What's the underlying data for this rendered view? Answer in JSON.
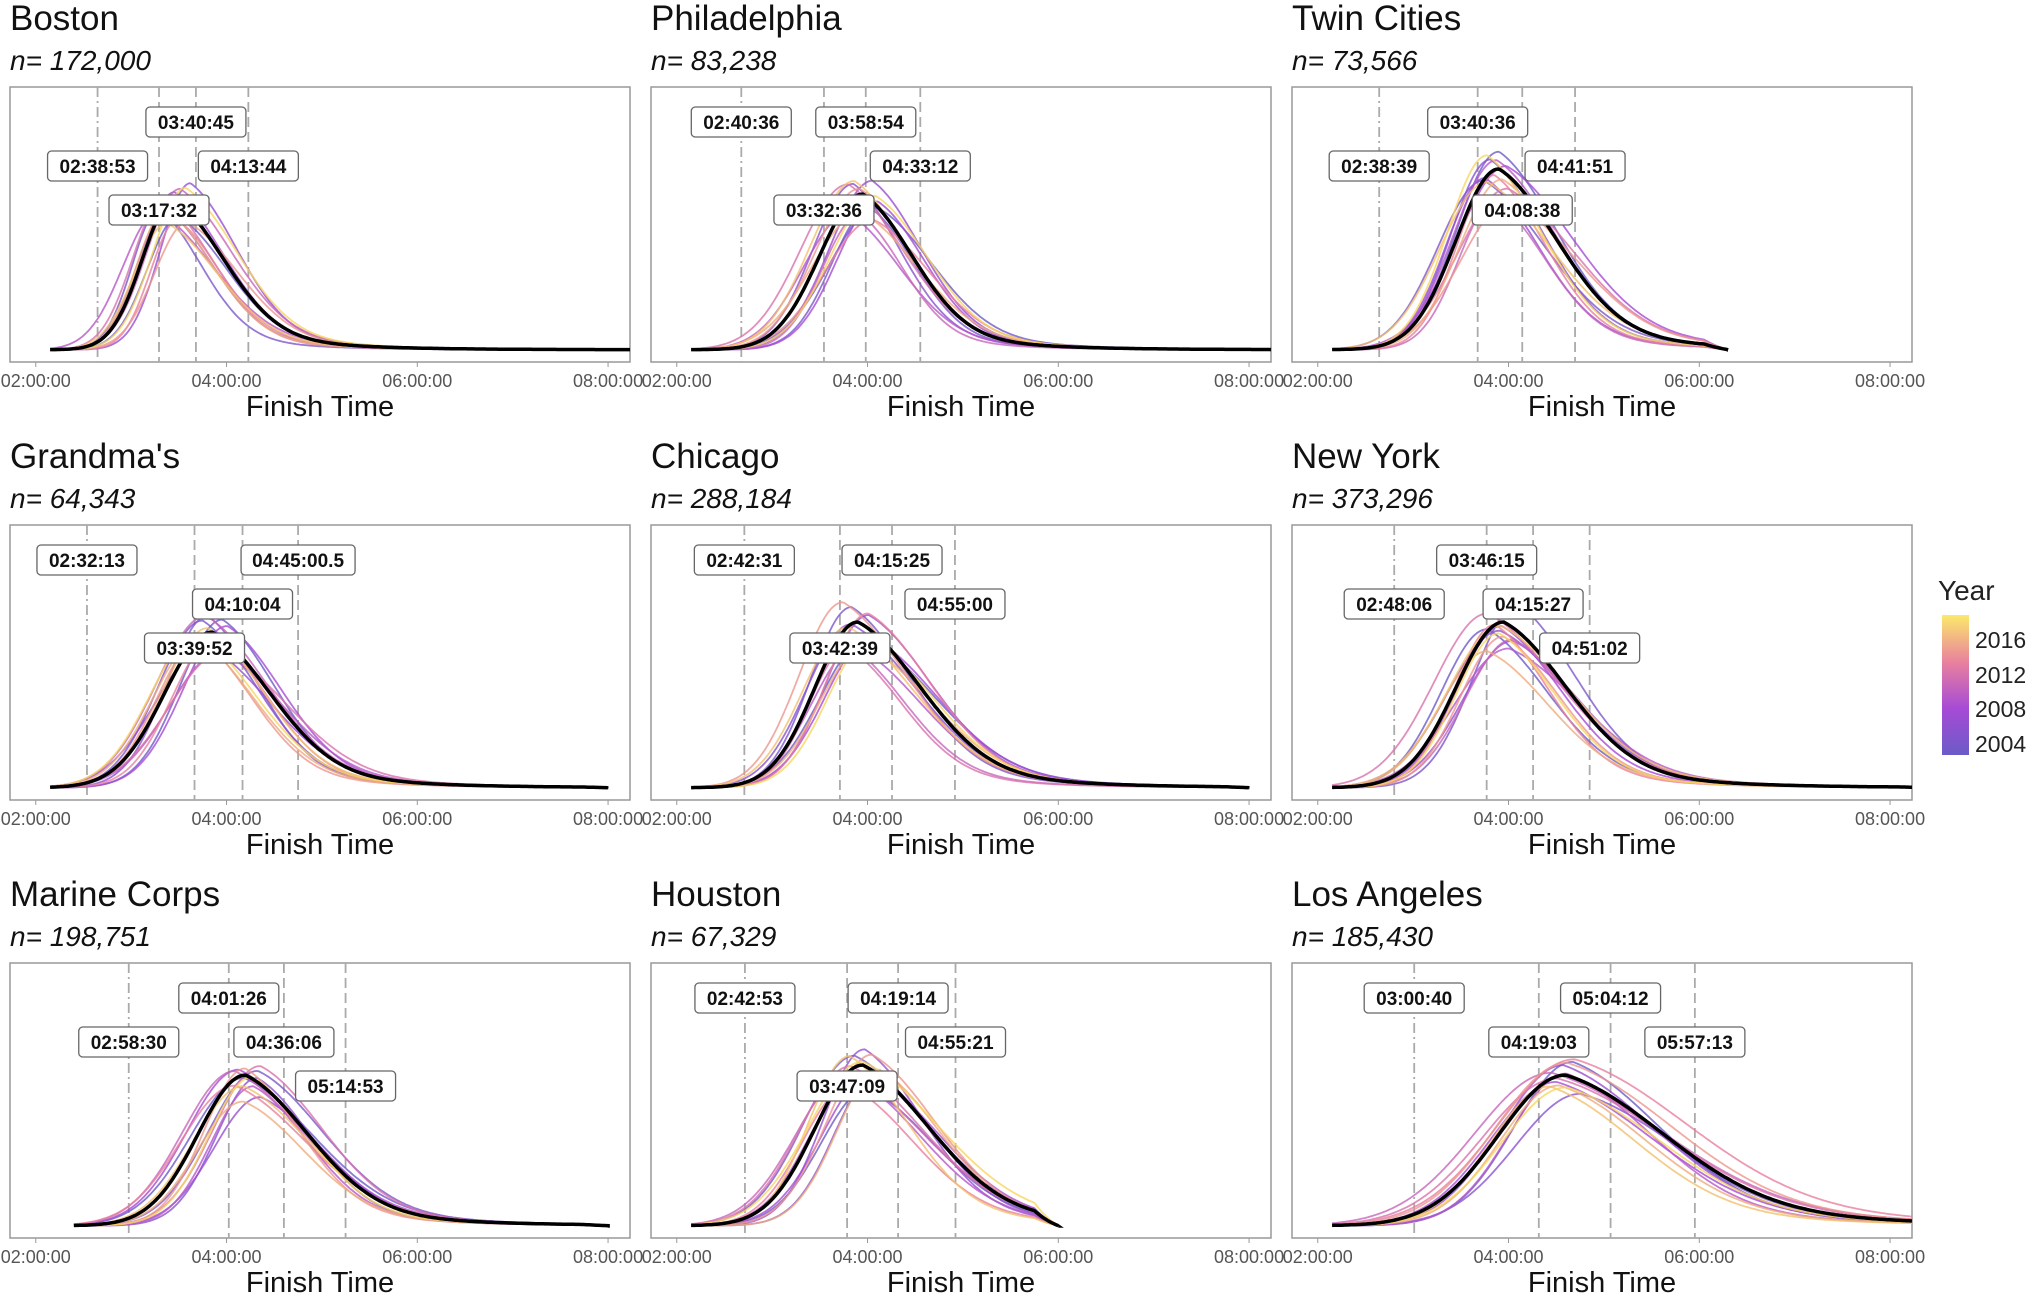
{
  "chart_data": {
    "type": "line",
    "description_units": "x in hours of finish time; curves are density of finishers per year",
    "xlabel": "Finish Time",
    "x_ticks": [
      "02:00:00",
      "04:00:00",
      "06:00:00",
      "08:00:00"
    ],
    "xlim_hours": [
      1.73,
      8.23
    ],
    "legend": {
      "title": "Year",
      "labels": [
        "2016",
        "2012",
        "2008",
        "2004"
      ],
      "range": [
        2004,
        2016
      ],
      "placement": "right"
    },
    "colors": {
      "2004": "#6b5bc7",
      "2008": "#a64bd6",
      "2012": "#e8809e",
      "2016": "#f6d65e",
      "mean": "#000000"
    },
    "panels": [
      {
        "title": "Boston",
        "n": "n= 172,000",
        "marks": [
          {
            "label": "02:38:53",
            "level": 1
          },
          {
            "label": "03:17:32",
            "level": 2
          },
          {
            "label": "03:40:45",
            "level": 0
          },
          {
            "label": "04:13:44",
            "level": 1
          }
        ],
        "curve": {
          "mode": 3.45,
          "sl": 0.33,
          "sr": 0.55,
          "start": 2.15,
          "end": 8.4,
          "peak": 0.6
        }
      },
      {
        "title": "Philadelphia",
        "n": "n= 83,238",
        "marks": [
          {
            "label": "02:40:36",
            "level": 0
          },
          {
            "label": "03:32:36",
            "level": 2
          },
          {
            "label": "03:58:54",
            "level": 0
          },
          {
            "label": "04:33:12",
            "level": 1
          }
        ],
        "curve": {
          "mode": 3.95,
          "sl": 0.45,
          "sr": 0.55,
          "start": 2.15,
          "end": 8.4,
          "peak": 0.62
        }
      },
      {
        "title": "Twin Cities",
        "n": "n= 73,566",
        "marks": [
          {
            "label": "02:38:39",
            "level": 1
          },
          {
            "label": "03:40:36",
            "level": 0
          },
          {
            "label": "04:08:38",
            "level": 2
          },
          {
            "label": "04:41:51",
            "level": 1
          }
        ],
        "curve": {
          "mode": 3.9,
          "sl": 0.45,
          "sr": 0.65,
          "start": 2.15,
          "end": 6.3,
          "peak": 0.72
        }
      },
      {
        "title": "Grandma's",
        "n": "n= 64,343",
        "marks": [
          {
            "label": "02:32:13",
            "level": 0
          },
          {
            "label": "03:39:52",
            "level": 2
          },
          {
            "label": "04:10:04",
            "level": 1
          },
          {
            "label": "04:45:00.5",
            "level": 0
          }
        ],
        "curve": {
          "mode": 3.85,
          "sl": 0.5,
          "sr": 0.65,
          "start": 2.15,
          "end": 8.0,
          "peak": 0.62
        }
      },
      {
        "title": "Chicago",
        "n": "n= 288,184",
        "marks": [
          {
            "label": "02:42:31",
            "level": 0
          },
          {
            "label": "03:42:39",
            "level": 2
          },
          {
            "label": "04:15:25",
            "level": 0
          },
          {
            "label": "04:55:00",
            "level": 1
          }
        ],
        "curve": {
          "mode": 3.9,
          "sl": 0.45,
          "sr": 0.7,
          "start": 2.15,
          "end": 8.0,
          "peak": 0.66
        }
      },
      {
        "title": "New York",
        "n": "n= 373,296",
        "marks": [
          {
            "label": "02:48:06",
            "level": 1
          },
          {
            "label": "03:46:15",
            "level": 0
          },
          {
            "label": "04:15:27",
            "level": 1
          },
          {
            "label": "04:51:02",
            "level": 2
          }
        ],
        "curve": {
          "mode": 3.95,
          "sl": 0.5,
          "sr": 0.7,
          "start": 2.15,
          "end": 8.4,
          "peak": 0.66
        }
      },
      {
        "title": "Marine Corps",
        "n": "n= 198,751",
        "marks": [
          {
            "label": "02:58:30",
            "level": 1
          },
          {
            "label": "04:01:26",
            "level": 0
          },
          {
            "label": "04:36:06",
            "level": 1
          },
          {
            "label": "05:14:53",
            "level": 2
          }
        ],
        "curve": {
          "mode": 4.2,
          "sl": 0.5,
          "sr": 0.7,
          "start": 2.4,
          "end": 8.0,
          "peak": 0.6
        }
      },
      {
        "title": "Houston",
        "n": "n= 67,329",
        "marks": [
          {
            "label": "02:42:53",
            "level": 0
          },
          {
            "label": "03:47:09",
            "level": 2
          },
          {
            "label": "04:19:14",
            "level": 0
          },
          {
            "label": "04:55:21",
            "level": 1
          }
        ],
        "curve": {
          "mode": 3.95,
          "sl": 0.5,
          "sr": 0.75,
          "start": 2.15,
          "end": 6.0,
          "peak": 0.64
        }
      },
      {
        "title": "Los Angeles",
        "n": "n= 185,430",
        "marks": [
          {
            "label": "03:00:40",
            "level": 0
          },
          {
            "label": "04:19:03",
            "level": 1
          },
          {
            "label": "05:04:12",
            "level": 0
          },
          {
            "label": "05:57:13",
            "level": 1
          }
        ],
        "curve": {
          "mode": 4.6,
          "sl": 0.7,
          "sr": 1.1,
          "start": 2.15,
          "end": 9.5,
          "peak": 0.6
        }
      }
    ],
    "years": [
      2004,
      2005,
      2006,
      2007,
      2008,
      2009,
      2010,
      2011,
      2012,
      2013,
      2014,
      2015,
      2016
    ]
  }
}
